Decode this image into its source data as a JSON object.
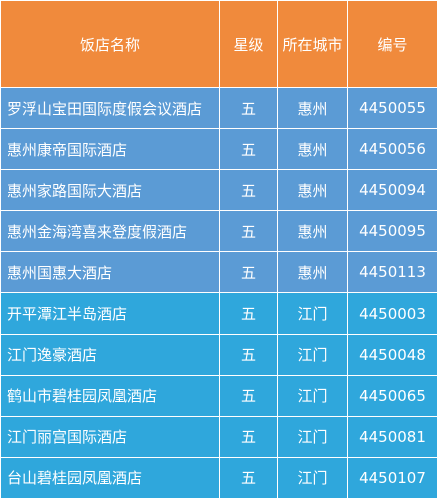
{
  "table": {
    "headers": {
      "name": "饭店名称",
      "star": "星级",
      "city": "所在城市",
      "code": "编号"
    },
    "colors": {
      "header_bg": "#f08a3c",
      "huizhou_row_bg": "#5b9bd5",
      "jiangmen_row_bg": "#2fa7dc",
      "text": "#ffffff"
    },
    "rows": [
      {
        "name": "罗浮山宝田国际度假会议酒店",
        "star": "五",
        "city": "惠州",
        "code": "4450055"
      },
      {
        "name": "惠州康帝国际酒店",
        "star": "五",
        "city": "惠州",
        "code": "4450056"
      },
      {
        "name": "惠州家路国际大酒店",
        "star": "五",
        "city": "惠州",
        "code": "4450094"
      },
      {
        "name": "惠州金海湾喜来登度假酒店",
        "star": "五",
        "city": "惠州",
        "code": "4450095"
      },
      {
        "name": "惠州国惠大酒店",
        "star": "五",
        "city": "惠州",
        "code": "4450113"
      },
      {
        "name": "开平潭江半岛酒店",
        "star": "五",
        "city": "江门",
        "code": "4450003"
      },
      {
        "name": "江门逸豪酒店",
        "star": "五",
        "city": "江门",
        "code": "4450048"
      },
      {
        "name": "鹤山市碧桂园凤凰酒店",
        "star": "五",
        "city": "江门",
        "code": "4450065"
      },
      {
        "name": "江门丽宫国际酒店",
        "star": "五",
        "city": "江门",
        "code": "4450081"
      },
      {
        "name": "台山碧桂园凤凰酒店",
        "star": "五",
        "city": "江门",
        "code": "4450107"
      }
    ]
  }
}
